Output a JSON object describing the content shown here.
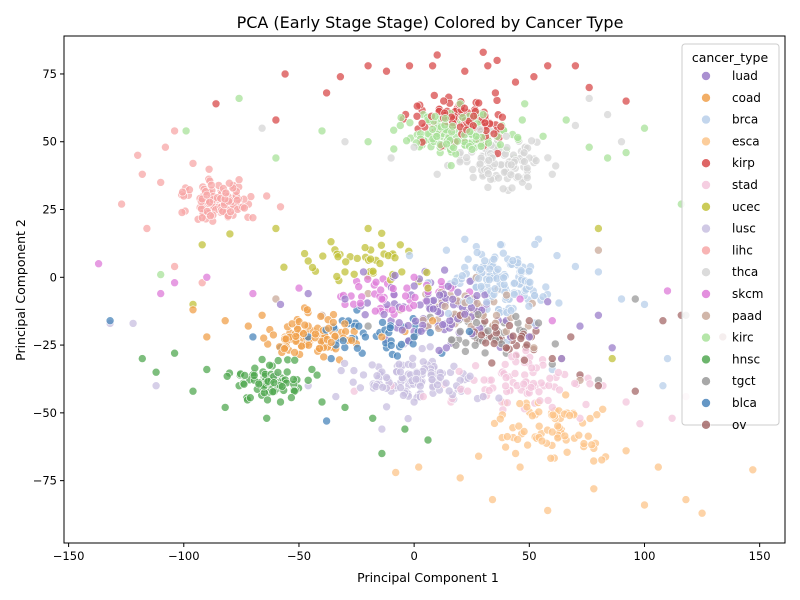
{
  "chart_data": {
    "type": "scatter",
    "title": "PCA (Early Stage Stage) Colored by Cancer Type",
    "xlabel": "Principal Component 1",
    "ylabel": "Principal Component 2",
    "xlim": [
      -152,
      161
    ],
    "ylim": [
      -98,
      89
    ],
    "xticks": [
      -150,
      -100,
      -50,
      0,
      50,
      100,
      150
    ],
    "yticks": [
      -75,
      -50,
      -25,
      0,
      25,
      50,
      75
    ],
    "grid": false,
    "legend": {
      "title": "cancer_type",
      "placement": "top-right"
    },
    "series": [
      {
        "name": "luad",
        "color": "#9b7dc9",
        "n": 95,
        "center": [
          10,
          -12
        ],
        "spread": [
          40,
          15
        ],
        "points": [
          [
            -30,
            -8
          ],
          [
            -22,
            2
          ],
          [
            -10,
            -16
          ],
          [
            0,
            -20
          ],
          [
            6,
            -6
          ],
          [
            14,
            -26
          ],
          [
            22,
            -10
          ],
          [
            30,
            2
          ],
          [
            40,
            -16
          ],
          [
            50,
            -22
          ],
          [
            58,
            -9
          ],
          [
            64,
            -30
          ],
          [
            72,
            -18
          ],
          [
            80,
            -14
          ],
          [
            86,
            -26
          ],
          [
            -58,
            -10
          ],
          [
            -46,
            -6
          ]
        ]
      },
      {
        "name": "coad",
        "color": "#f0a04b",
        "n": 85,
        "center": [
          -45,
          -22
        ],
        "spread": [
          25,
          10
        ],
        "points": [
          [
            -96,
            -12
          ],
          [
            -90,
            -22
          ],
          [
            -82,
            -16
          ],
          [
            -72,
            -18
          ],
          [
            -66,
            -14
          ],
          [
            -56,
            -26
          ],
          [
            -46,
            -18
          ],
          [
            -36,
            -24
          ],
          [
            -26,
            -20
          ],
          [
            -14,
            -22
          ],
          [
            -4,
            -20
          ],
          [
            8,
            -16
          ]
        ]
      },
      {
        "name": "brca",
        "color": "#b8cfea",
        "n": 130,
        "center": [
          35,
          -2
        ],
        "spread": [
          28,
          15
        ],
        "points": [
          [
            -2,
            8
          ],
          [
            6,
            -2
          ],
          [
            14,
            10
          ],
          [
            22,
            14
          ],
          [
            30,
            4
          ],
          [
            38,
            12
          ],
          [
            46,
            2
          ],
          [
            54,
            14
          ],
          [
            62,
            8
          ],
          [
            70,
            4
          ],
          [
            80,
            2
          ],
          [
            90,
            -8
          ],
          [
            100,
            -10
          ],
          [
            110,
            -30
          ],
          [
            108,
            -40
          ],
          [
            40,
            -24
          ],
          [
            60,
            -34
          ]
        ]
      },
      {
        "name": "esca",
        "color": "#fcc48a",
        "n": 75,
        "center": [
          60,
          -55
        ],
        "spread": [
          30,
          14
        ],
        "points": [
          [
            -8,
            -72
          ],
          [
            2,
            -70
          ],
          [
            20,
            -74
          ],
          [
            28,
            -66
          ],
          [
            34,
            -82
          ],
          [
            46,
            -70
          ],
          [
            58,
            -86
          ],
          [
            66,
            -60
          ],
          [
            78,
            -78
          ],
          [
            92,
            -64
          ],
          [
            100,
            -84
          ],
          [
            106,
            -70
          ],
          [
            118,
            -82
          ],
          [
            125,
            -87
          ],
          [
            147,
            -71
          ]
        ]
      },
      {
        "name": "kirp",
        "color": "#d84b4b",
        "n": 115,
        "center": [
          20,
          58
        ],
        "spread": [
          28,
          10
        ],
        "points": [
          [
            -56,
            75
          ],
          [
            -38,
            68
          ],
          [
            -32,
            74
          ],
          [
            -20,
            78
          ],
          [
            -12,
            76
          ],
          [
            -2,
            78
          ],
          [
            8,
            78
          ],
          [
            10,
            82
          ],
          [
            22,
            76
          ],
          [
            30,
            83
          ],
          [
            32,
            78
          ],
          [
            36,
            80
          ],
          [
            44,
            72
          ],
          [
            52,
            74
          ],
          [
            58,
            78
          ],
          [
            70,
            78
          ],
          [
            76,
            70
          ],
          [
            92,
            65
          ],
          [
            -86,
            64
          ],
          [
            -60,
            58
          ]
        ]
      },
      {
        "name": "stad",
        "color": "#f3c6dc",
        "n": 75,
        "center": [
          50,
          -38
        ],
        "spread": [
          35,
          12
        ],
        "points": [
          [
            -26,
            -42
          ],
          [
            -10,
            -40
          ],
          [
            4,
            -44
          ],
          [
            16,
            -46
          ],
          [
            26,
            -38
          ],
          [
            38,
            -46
          ],
          [
            48,
            -36
          ],
          [
            60,
            -48
          ],
          [
            72,
            -52
          ],
          [
            82,
            -40
          ],
          [
            92,
            -46
          ],
          [
            98,
            -54
          ],
          [
            112,
            -52
          ],
          [
            118,
            -44
          ]
        ]
      },
      {
        "name": "ucec",
        "color": "#c2c23b",
        "n": 40,
        "center": [
          -20,
          5
        ],
        "spread": [
          35,
          15
        ],
        "points": [
          [
            -96,
            -10
          ],
          [
            -92,
            12
          ],
          [
            -80,
            16
          ],
          [
            -60,
            18
          ],
          [
            -46,
            6
          ],
          [
            -30,
            2
          ],
          [
            -20,
            18
          ],
          [
            -6,
            12
          ],
          [
            6,
            -4
          ],
          [
            80,
            18
          ],
          [
            86,
            -30
          ]
        ]
      },
      {
        "name": "lusc",
        "color": "#c8bfe0",
        "n": 110,
        "center": [
          0,
          -38
        ],
        "spread": [
          30,
          12
        ],
        "points": [
          [
            -132,
            -17
          ],
          [
            -122,
            -17
          ],
          [
            -112,
            -40
          ],
          [
            -60,
            -36
          ],
          [
            -46,
            -40
          ],
          [
            -34,
            -44
          ],
          [
            -22,
            -36
          ],
          [
            -10,
            -42
          ],
          [
            0,
            -46
          ],
          [
            8,
            -40
          ],
          [
            20,
            -38
          ],
          [
            30,
            -44
          ],
          [
            -14,
            -56
          ]
        ]
      },
      {
        "name": "lihc",
        "color": "#f7a7a7",
        "n": 110,
        "center": [
          -85,
          28
        ],
        "spread": [
          18,
          10
        ],
        "points": [
          [
            -127,
            27
          ],
          [
            -120,
            45
          ],
          [
            -118,
            38
          ],
          [
            -116,
            18
          ],
          [
            -110,
            35
          ],
          [
            -108,
            48
          ],
          [
            -104,
            54
          ],
          [
            -100,
            30
          ],
          [
            -96,
            42
          ],
          [
            -92,
            22
          ],
          [
            -88,
            34
          ],
          [
            -82,
            28
          ],
          [
            -76,
            36
          ],
          [
            -70,
            22
          ],
          [
            -64,
            30
          ],
          [
            -58,
            26
          ],
          [
            -104,
            4
          ],
          [
            -92,
            -2
          ]
        ]
      },
      {
        "name": "thca",
        "color": "#d5d5d5",
        "n": 100,
        "center": [
          40,
          42
        ],
        "spread": [
          25,
          12
        ],
        "points": [
          [
            -66,
            55
          ],
          [
            -30,
            50
          ],
          [
            -10,
            44
          ],
          [
            0,
            48
          ],
          [
            10,
            38
          ],
          [
            20,
            46
          ],
          [
            30,
            40
          ],
          [
            40,
            52
          ],
          [
            50,
            44
          ],
          [
            60,
            38
          ],
          [
            70,
            56
          ],
          [
            76,
            66
          ],
          [
            84,
            60
          ],
          [
            90,
            50
          ]
        ]
      },
      {
        "name": "skcm",
        "color": "#de7bd8",
        "n": 40,
        "center": [
          -10,
          -6
        ],
        "spread": [
          40,
          10
        ],
        "points": [
          [
            -137,
            5
          ],
          [
            -110,
            -6
          ],
          [
            -104,
            -2
          ],
          [
            -90,
            0
          ],
          [
            -70,
            -6
          ],
          [
            -50,
            -4
          ],
          [
            -30,
            -10
          ],
          [
            -14,
            -8
          ],
          [
            0,
            0
          ],
          [
            16,
            -4
          ],
          [
            30,
            -12
          ],
          [
            46,
            -8
          ],
          [
            60,
            -16
          ],
          [
            110,
            -5
          ]
        ]
      },
      {
        "name": "paad",
        "color": "#c9a99a",
        "n": 45,
        "center": [
          25,
          -12
        ],
        "spread": [
          30,
          12
        ],
        "points": [
          [
            -60,
            -8
          ],
          [
            -40,
            -14
          ],
          [
            -20,
            -6
          ],
          [
            -6,
            -12
          ],
          [
            6,
            -18
          ],
          [
            18,
            -8
          ],
          [
            30,
            -14
          ],
          [
            40,
            -20
          ],
          [
            52,
            -26
          ],
          [
            64,
            -30
          ],
          [
            72,
            -38
          ],
          [
            80,
            10
          ]
        ]
      },
      {
        "name": "kirc",
        "color": "#a8e29a",
        "n": 140,
        "center": [
          20,
          52
        ],
        "spread": [
          28,
          10
        ],
        "points": [
          [
            -99,
            54
          ],
          [
            -76,
            66
          ],
          [
            -60,
            44
          ],
          [
            -40,
            54
          ],
          [
            -20,
            50
          ],
          [
            -6,
            56
          ],
          [
            4,
            60
          ],
          [
            12,
            52
          ],
          [
            20,
            64
          ],
          [
            30,
            60
          ],
          [
            38,
            56
          ],
          [
            48,
            64
          ],
          [
            56,
            52
          ],
          [
            66,
            58
          ],
          [
            76,
            48
          ],
          [
            84,
            44
          ],
          [
            92,
            46
          ],
          [
            100,
            55
          ],
          [
            116,
            27
          ],
          [
            -110,
            1
          ]
        ]
      },
      {
        "name": "hnsc",
        "color": "#52a852",
        "n": 70,
        "center": [
          -62,
          -38
        ],
        "spread": [
          20,
          9
        ],
        "points": [
          [
            -118,
            -30
          ],
          [
            -112,
            -35
          ],
          [
            -104,
            -28
          ],
          [
            -96,
            -42
          ],
          [
            -90,
            -34
          ],
          [
            -82,
            -48
          ],
          [
            -76,
            -40
          ],
          [
            -70,
            -36
          ],
          [
            -64,
            -52
          ],
          [
            -58,
            -46
          ],
          [
            -52,
            -42
          ],
          [
            -46,
            -38
          ],
          [
            -40,
            -46
          ],
          [
            -30,
            -48
          ],
          [
            -18,
            -52
          ],
          [
            -4,
            -56
          ],
          [
            6,
            -60
          ],
          [
            -14,
            -65
          ]
        ]
      },
      {
        "name": "tgct",
        "color": "#999999",
        "n": 35,
        "center": [
          30,
          -20
        ],
        "spread": [
          35,
          10
        ],
        "points": [
          [
            -40,
            -24
          ],
          [
            -20,
            -18
          ],
          [
            0,
            -22
          ],
          [
            20,
            -20
          ],
          [
            40,
            -28
          ],
          [
            60,
            -32
          ],
          [
            80,
            -38
          ],
          [
            96,
            -8
          ],
          [
            118,
            -14
          ]
        ]
      },
      {
        "name": "blca",
        "color": "#4a85bb",
        "n": 40,
        "center": [
          -15,
          -22
        ],
        "spread": [
          30,
          9
        ],
        "points": [
          [
            -132,
            -16
          ],
          [
            -70,
            -22
          ],
          [
            -58,
            -26
          ],
          [
            -46,
            -22
          ],
          [
            -36,
            -30
          ],
          [
            -24,
            -18
          ],
          [
            -12,
            -26
          ],
          [
            0,
            -22
          ],
          [
            12,
            -28
          ],
          [
            24,
            -20
          ],
          [
            -38,
            -53
          ]
        ]
      },
      {
        "name": "ov",
        "color": "#a56a6a",
        "n": 30,
        "center": [
          40,
          -22
        ],
        "spread": [
          25,
          9
        ],
        "points": [
          [
            20,
            -14
          ],
          [
            30,
            -20
          ],
          [
            40,
            -26
          ],
          [
            50,
            -16
          ],
          [
            60,
            -30
          ],
          [
            68,
            -22
          ],
          [
            72,
            -36
          ],
          [
            80,
            -40
          ],
          [
            96,
            -42
          ],
          [
            108,
            -16
          ],
          [
            116,
            -14
          ],
          [
            134,
            -22
          ]
        ]
      }
    ]
  }
}
